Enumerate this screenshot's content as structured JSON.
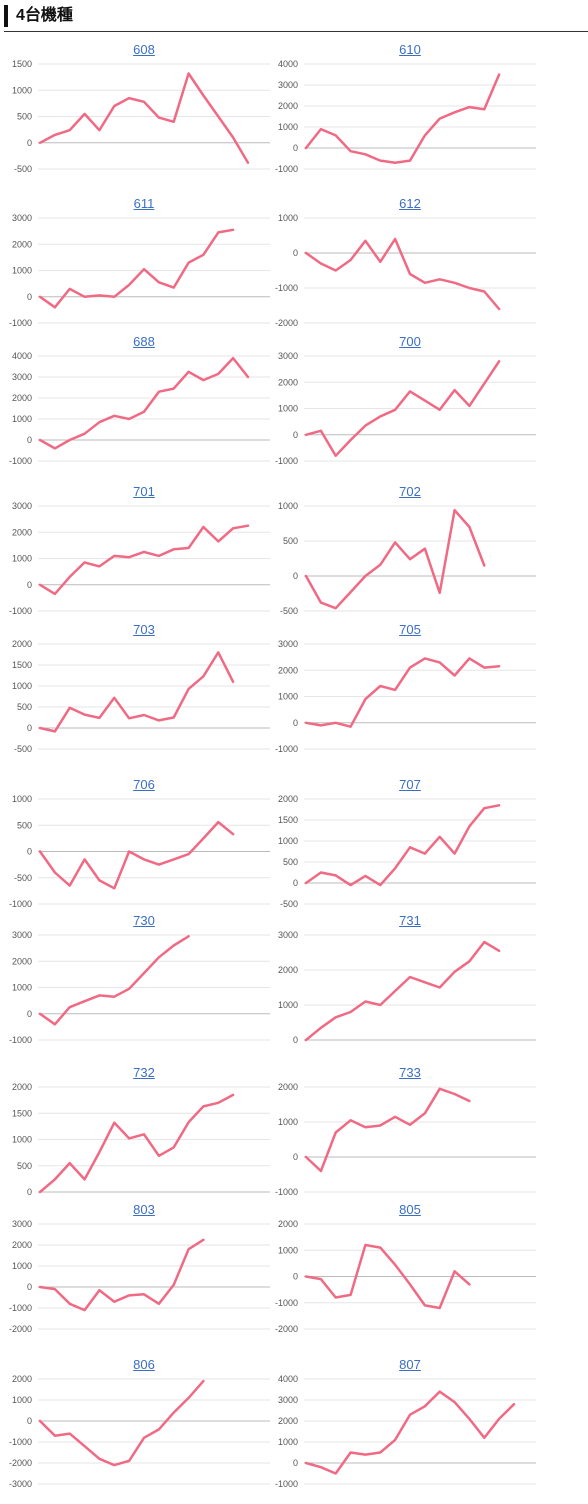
{
  "header": {
    "title": "4台機種"
  },
  "colors": {
    "line": "#f06a84",
    "grid": "#e6e6e6",
    "zero": "#bbbbbb",
    "link": "#3a6fc4"
  },
  "chart_data": [
    {
      "type": "line",
      "title": "608",
      "yticks": [
        -500,
        0,
        500,
        1000,
        1500
      ],
      "ylim": [
        -500,
        1500
      ],
      "values": [
        0,
        150,
        240,
        550,
        240,
        700,
        850,
        780,
        480,
        400,
        1320,
        900,
        500,
        100,
        -380
      ]
    },
    {
      "type": "line",
      "title": "610",
      "yticks": [
        -1000,
        0,
        1000,
        2000,
        3000,
        4000
      ],
      "ylim": [
        -1000,
        4000
      ],
      "values": [
        0,
        900,
        600,
        -150,
        -300,
        -600,
        -700,
        -600,
        600,
        1400,
        1700,
        1950,
        1850,
        3500
      ]
    },
    {
      "type": "line",
      "title": "611",
      "yticks": [
        -1000,
        0,
        1000,
        2000,
        3000
      ],
      "ylim": [
        -1000,
        3000
      ],
      "values": [
        0,
        -400,
        300,
        0,
        50,
        0,
        450,
        1050,
        550,
        350,
        1300,
        1600,
        2450,
        2550
      ]
    },
    {
      "type": "line",
      "title": "612",
      "yticks": [
        -2000,
        -1000,
        0,
        1000
      ],
      "ylim": [
        -2000,
        1000
      ],
      "values": [
        0,
        -300,
        -500,
        -200,
        350,
        -250,
        400,
        -600,
        -850,
        -750,
        -850,
        -1000,
        -1100,
        -1600
      ]
    },
    {
      "type": "line",
      "title": "688",
      "yticks": [
        -1000,
        0,
        1000,
        2000,
        3000,
        4000
      ],
      "ylim": [
        -1000,
        4000
      ],
      "values": [
        0,
        -400,
        0,
        300,
        850,
        1150,
        1000,
        1350,
        2300,
        2450,
        3250,
        2850,
        3150,
        3900,
        3000
      ]
    },
    {
      "type": "line",
      "title": "700",
      "yticks": [
        -1000,
        0,
        1000,
        2000,
        3000
      ],
      "ylim": [
        -1000,
        3000
      ],
      "values": [
        0,
        150,
        -800,
        -200,
        350,
        700,
        950,
        1650,
        1300,
        950,
        1700,
        1100,
        1950,
        2800
      ]
    },
    {
      "type": "line",
      "title": "701",
      "yticks": [
        -1000,
        0,
        1000,
        2000,
        3000
      ],
      "ylim": [
        -1000,
        3000
      ],
      "values": [
        0,
        -350,
        300,
        850,
        700,
        1100,
        1050,
        1250,
        1100,
        1350,
        1400,
        2200,
        1650,
        2150,
        2250
      ]
    },
    {
      "type": "line",
      "title": "702",
      "yticks": [
        -500,
        0,
        500,
        1000
      ],
      "ylim": [
        -500,
        1000
      ],
      "values": [
        0,
        -380,
        -460,
        -230,
        0,
        160,
        480,
        240,
        390,
        -240,
        940,
        700,
        150
      ]
    },
    {
      "type": "line",
      "title": "703",
      "yticks": [
        -500,
        0,
        500,
        1000,
        1500,
        2000
      ],
      "ylim": [
        -500,
        2000
      ],
      "values": [
        0,
        -80,
        480,
        320,
        240,
        720,
        230,
        310,
        180,
        250,
        930,
        1230,
        1800,
        1100
      ]
    },
    {
      "type": "line",
      "title": "705",
      "yticks": [
        -1000,
        0,
        1000,
        2000,
        3000
      ],
      "ylim": [
        -1000,
        3000
      ],
      "values": [
        0,
        -100,
        0,
        -150,
        900,
        1400,
        1250,
        2100,
        2450,
        2300,
        1800,
        2450,
        2100,
        2150
      ]
    },
    {
      "type": "line",
      "title": "706",
      "yticks": [
        -1000,
        -500,
        0,
        500,
        1000
      ],
      "ylim": [
        -1000,
        1000
      ],
      "values": [
        0,
        -400,
        -650,
        -150,
        -550,
        -700,
        0,
        -150,
        -250,
        -150,
        -50,
        250,
        560,
        330
      ]
    },
    {
      "type": "line",
      "title": "707",
      "yticks": [
        -500,
        0,
        500,
        1000,
        1500,
        2000
      ],
      "ylim": [
        -500,
        2000
      ],
      "values": [
        0,
        250,
        180,
        -50,
        170,
        -50,
        350,
        850,
        700,
        1100,
        700,
        1350,
        1780,
        1850
      ]
    },
    {
      "type": "line",
      "title": "730",
      "yticks": [
        -1000,
        0,
        1000,
        2000,
        3000
      ],
      "ylim": [
        -1000,
        3000
      ],
      "values": [
        0,
        -400,
        250,
        480,
        700,
        650,
        950,
        1550,
        2150,
        2600,
        2950
      ]
    },
    {
      "type": "line",
      "title": "731",
      "yticks": [
        0,
        1000,
        2000,
        3000
      ],
      "ylim": [
        0,
        3000
      ],
      "values": [
        0,
        350,
        650,
        800,
        1100,
        1000,
        1400,
        1800,
        1650,
        1500,
        1950,
        2250,
        2800,
        2550
      ]
    },
    {
      "type": "line",
      "title": "732",
      "yticks": [
        0,
        500,
        1000,
        1500,
        2000
      ],
      "ylim": [
        0,
        2000
      ],
      "values": [
        0,
        240,
        550,
        240,
        760,
        1320,
        1020,
        1100,
        690,
        850,
        1330,
        1630,
        1700,
        1850
      ]
    },
    {
      "type": "line",
      "title": "733",
      "yticks": [
        -1000,
        0,
        1000,
        2000
      ],
      "ylim": [
        -1000,
        2000
      ],
      "values": [
        0,
        -400,
        700,
        1050,
        850,
        900,
        1150,
        920,
        1250,
        1950,
        1800,
        1600
      ]
    },
    {
      "type": "line",
      "title": "803",
      "yticks": [
        -2000,
        -1000,
        0,
        1000,
        2000,
        3000
      ],
      "ylim": [
        -2000,
        3000
      ],
      "values": [
        0,
        -100,
        -800,
        -1100,
        -150,
        -700,
        -400,
        -350,
        -800,
        100,
        1800,
        2250
      ]
    },
    {
      "type": "line",
      "title": "805",
      "yticks": [
        -2000,
        -1000,
        0,
        1000,
        2000
      ],
      "ylim": [
        -2000,
        2000
      ],
      "values": [
        0,
        -100,
        -800,
        -700,
        1200,
        1100,
        450,
        -300,
        -1100,
        -1200,
        200,
        -300
      ]
    },
    {
      "type": "line",
      "title": "806",
      "yticks": [
        -3000,
        -2000,
        -1000,
        0,
        1000,
        2000
      ],
      "ylim": [
        -3000,
        2000
      ],
      "values": [
        0,
        -700,
        -600,
        -1200,
        -1800,
        -2100,
        -1900,
        -800,
        -400,
        400,
        1100,
        1900
      ]
    },
    {
      "type": "line",
      "title": "807",
      "yticks": [
        -1000,
        0,
        1000,
        2000,
        3000,
        4000
      ],
      "ylim": [
        -1000,
        4000
      ],
      "values": [
        0,
        -200,
        -500,
        500,
        400,
        500,
        1100,
        2300,
        2700,
        3400,
        2900,
        2100,
        1200,
        2100,
        2800
      ]
    }
  ]
}
